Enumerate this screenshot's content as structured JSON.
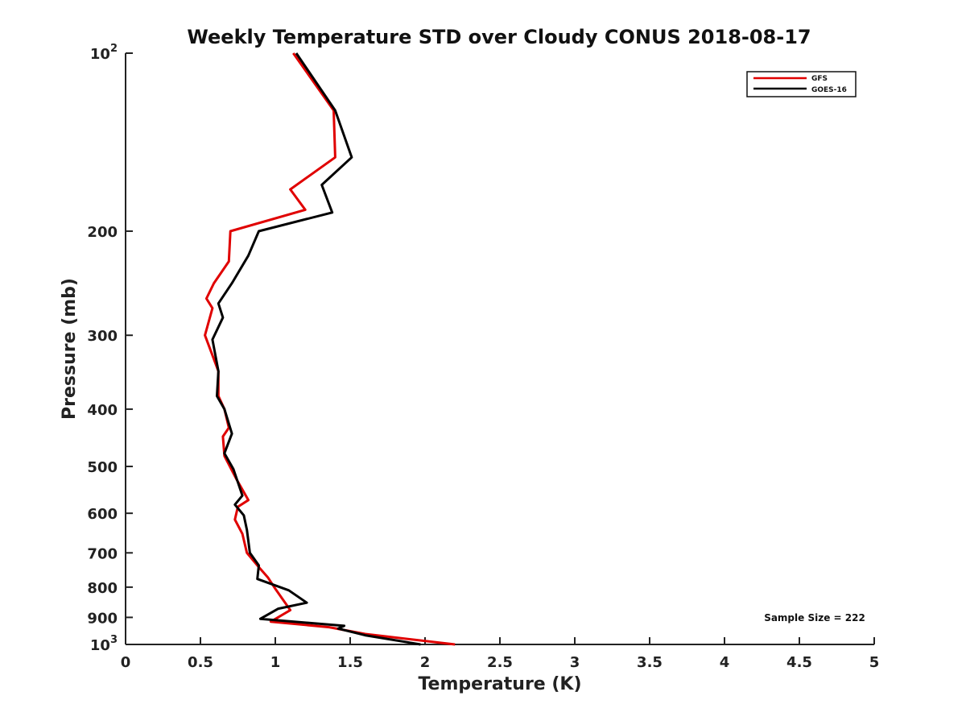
{
  "chart_data": {
    "type": "line",
    "title": "Weekly Temperature STD over Cloudy CONUS 2018-08-17",
    "xlabel": "Temperature (K)",
    "ylabel": "Pressure (mb)",
    "xlim": [
      0,
      5
    ],
    "ylim": [
      100,
      1000
    ],
    "y_scale": "log",
    "y_reversed": true,
    "x_ticks": [
      "0",
      "0.5",
      "1",
      "1.5",
      "2",
      "2.5",
      "3",
      "3.5",
      "4",
      "4.5",
      "5"
    ],
    "y_ticks": [
      {
        "value": 100,
        "base": "10",
        "exp": "2"
      },
      {
        "value": 200,
        "label": "200"
      },
      {
        "value": 300,
        "label": "300"
      },
      {
        "value": 400,
        "label": "400"
      },
      {
        "value": 500,
        "label": "500"
      },
      {
        "value": 600,
        "label": "600"
      },
      {
        "value": 700,
        "label": "700"
      },
      {
        "value": 800,
        "label": "800"
      },
      {
        "value": 900,
        "label": "900"
      },
      {
        "value": 1000,
        "base": "10",
        "exp": "3"
      }
    ],
    "grid": false,
    "legend_position": "top-right",
    "annotation": "Sample Size = 222",
    "series": [
      {
        "name": "GFS",
        "color": "#e00000",
        "points": [
          [
            1.12,
            100
          ],
          [
            1.39,
            125
          ],
          [
            1.4,
            150
          ],
          [
            1.1,
            170
          ],
          [
            1.2,
            184
          ],
          [
            0.7,
            200
          ],
          [
            0.69,
            225
          ],
          [
            0.59,
            245
          ],
          [
            0.54,
            260
          ],
          [
            0.58,
            270
          ],
          [
            0.53,
            300
          ],
          [
            0.62,
            345
          ],
          [
            0.62,
            380
          ],
          [
            0.66,
            400
          ],
          [
            0.69,
            430
          ],
          [
            0.65,
            445
          ],
          [
            0.66,
            480
          ],
          [
            0.74,
            525
          ],
          [
            0.82,
            570
          ],
          [
            0.75,
            585
          ],
          [
            0.73,
            615
          ],
          [
            0.78,
            650
          ],
          [
            0.81,
            700
          ],
          [
            0.89,
            740
          ],
          [
            0.95,
            770
          ],
          [
            1.0,
            805
          ],
          [
            1.1,
            875
          ],
          [
            0.97,
            915
          ],
          [
            1.36,
            935
          ],
          [
            1.6,
            960
          ],
          [
            2.2,
            1000
          ]
        ]
      },
      {
        "name": "GOES-16",
        "color": "#000000",
        "points": [
          [
            1.14,
            100
          ],
          [
            1.4,
            125
          ],
          [
            1.51,
            150
          ],
          [
            1.31,
            167
          ],
          [
            1.38,
            186
          ],
          [
            0.89,
            200
          ],
          [
            0.82,
            220
          ],
          [
            0.71,
            245
          ],
          [
            0.62,
            265
          ],
          [
            0.65,
            280
          ],
          [
            0.58,
            305
          ],
          [
            0.62,
            345
          ],
          [
            0.61,
            380
          ],
          [
            0.66,
            400
          ],
          [
            0.71,
            440
          ],
          [
            0.66,
            475
          ],
          [
            0.72,
            505
          ],
          [
            0.78,
            560
          ],
          [
            0.73,
            580
          ],
          [
            0.79,
            605
          ],
          [
            0.81,
            640
          ],
          [
            0.83,
            700
          ],
          [
            0.89,
            735
          ],
          [
            0.88,
            775
          ],
          [
            1.09,
            810
          ],
          [
            1.21,
            850
          ],
          [
            1.02,
            870
          ],
          [
            0.9,
            905
          ],
          [
            1.46,
            930
          ],
          [
            1.42,
            940
          ],
          [
            1.6,
            965
          ],
          [
            1.97,
            1000
          ]
        ]
      }
    ]
  }
}
